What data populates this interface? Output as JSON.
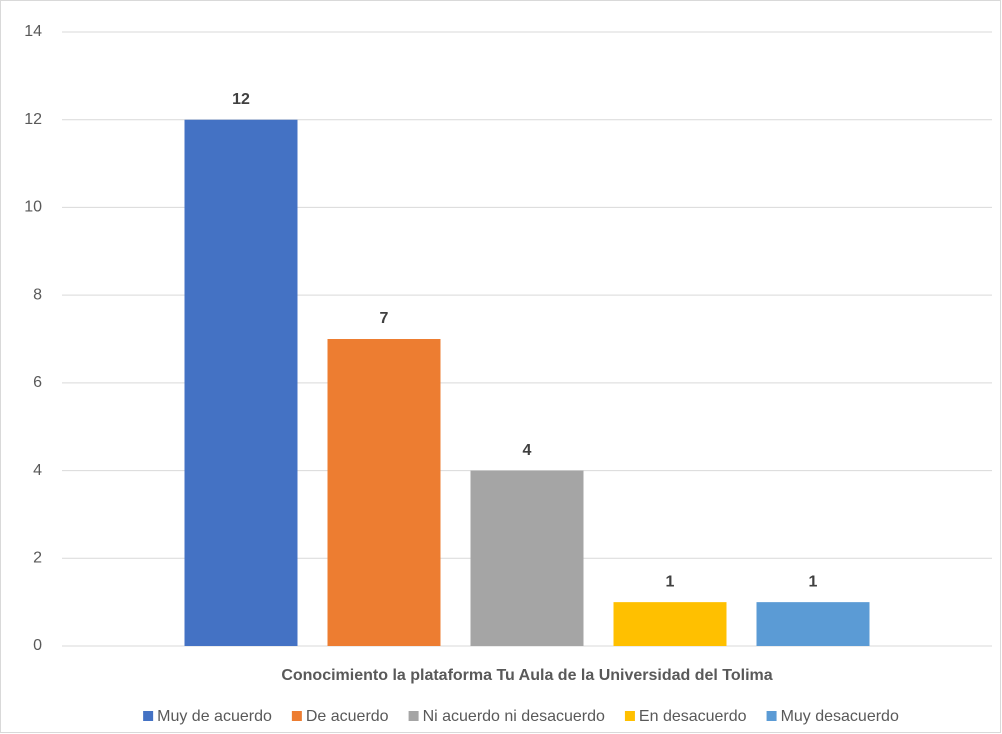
{
  "chart_data": {
    "type": "bar",
    "categories": [
      "Conocimiento la plataforma Tu Aula de la Universidad del Tolima"
    ],
    "series": [
      {
        "name": "Muy de acuerdo",
        "color": "#4472c4",
        "values": [
          12
        ]
      },
      {
        "name": "De acuerdo",
        "color": "#ed7d31",
        "values": [
          7
        ]
      },
      {
        "name": "Ni acuerdo ni desacuerdo",
        "color": "#a5a5a5",
        "values": [
          4
        ]
      },
      {
        "name": "En desacuerdo",
        "color": "#ffc000",
        "values": [
          1
        ]
      },
      {
        "name": "Muy desacuerdo",
        "color": "#5b9bd5",
        "values": [
          1
        ]
      }
    ],
    "ylim": [
      0,
      14
    ],
    "yticks": [
      0,
      2,
      4,
      6,
      8,
      10,
      12,
      14
    ],
    "grid": true,
    "legend": "bottom"
  }
}
